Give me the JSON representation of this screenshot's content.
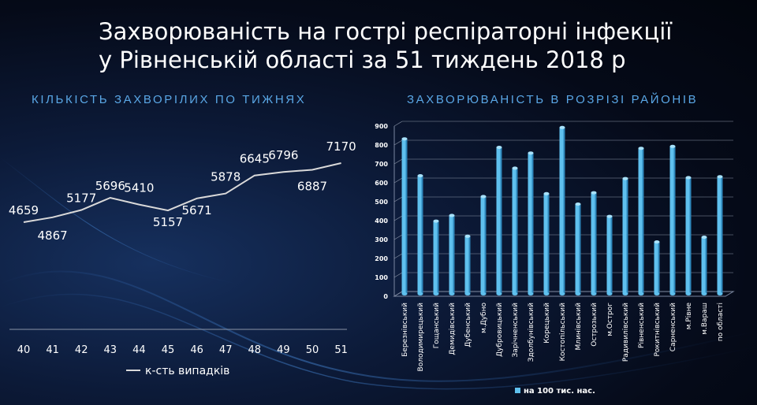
{
  "title": {
    "line1": "Захворюваність на гострі респіраторні інфекції",
    "line2": "у Рівненській області за 51 тиждень 2018 р"
  },
  "colors": {
    "line": "#d9d9d9",
    "bar": "#5fc0ee",
    "bar_dark": "#1a6fa6",
    "bar_top": "#a8e2fb",
    "subtitle": "#5aa7e6"
  },
  "chart_data": [
    {
      "type": "line",
      "title": "КІЛЬКІСТЬ ЗАХВОРІЛИХ ПО ТИЖНЯХ",
      "categories": [
        "40",
        "41",
        "42",
        "43",
        "44",
        "45",
        "46",
        "47",
        "48",
        "49",
        "50",
        "51"
      ],
      "series": [
        {
          "name": "к-сть випадків",
          "values": [
            4659,
            4867,
            5177,
            5696,
            5410,
            5157,
            5671,
            5878,
            6645,
            6796,
            6887,
            7170
          ]
        }
      ],
      "legend": "bottom",
      "grid": false
    },
    {
      "type": "bar",
      "title": "ЗАХВОРЮВАНІСТЬ В РОЗРІЗІ РАЙОНІВ",
      "categories": [
        "Березнівський",
        "Володимирецький",
        "Гощанський",
        "Демидівський",
        "Дубенський",
        "м.Дубно",
        "Дубровицький",
        "Зарічненський",
        "Здолбунівський",
        "Корецький",
        "Костопільський",
        "Млинівський",
        "Острозький",
        "м.Острог",
        "Радивилівський",
        "Рівненський",
        "Рокитнівський",
        "Сарненський",
        "м.Рівне",
        "м.Вараш",
        "по області"
      ],
      "series": [
        {
          "name": "на 100 тис. нас.",
          "values": [
            820,
            625,
            385,
            415,
            305,
            515,
            775,
            665,
            745,
            530,
            880,
            475,
            535,
            410,
            610,
            770,
            275,
            780,
            615,
            300,
            620
          ]
        }
      ],
      "yticks": [
        "0",
        "100",
        "200",
        "300",
        "400",
        "500",
        "600",
        "700",
        "800",
        "900"
      ],
      "ylim": [
        0,
        900
      ],
      "legend": "bottom",
      "grid": true
    }
  ]
}
